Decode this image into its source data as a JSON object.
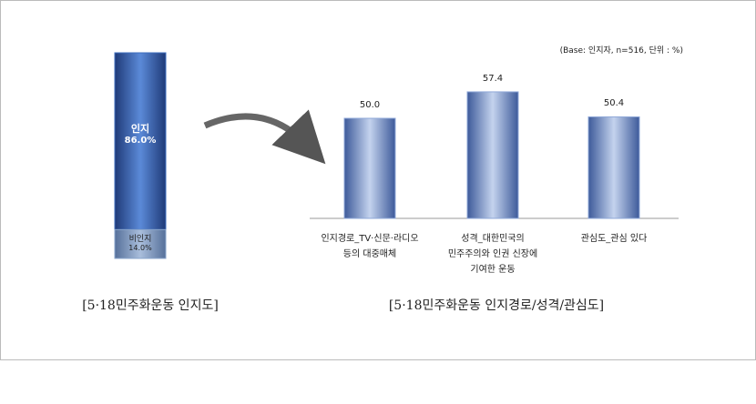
{
  "chart_data": [
    {
      "type": "stacked100",
      "caption": "[5·18민주화운동 인지도]",
      "categories": [
        "인지",
        "비인지"
      ],
      "values": [
        86.0,
        14.0
      ],
      "value_labels": [
        "86.0%",
        "14.0%"
      ],
      "colors": [
        "#3f6fbf",
        "#8aa6cc"
      ]
    },
    {
      "type": "bar",
      "caption": "[5·18민주화운동 인지경로/성격/관심도]",
      "subtitle": "(Base: 인지자, n=516, 단위 : %)",
      "categories": [
        "인지경로_TV·신문·라디오\n등의 대중매체",
        "성격_대한민국의\n민주주의와 인권 신장에\n기여한 운동",
        "관심도_관심 있다"
      ],
      "values": [
        50.0,
        57.4,
        50.4
      ],
      "value_labels": [
        "50.0",
        "57.4",
        "50.4"
      ],
      "color": "#8fa8d8",
      "ylim": [
        22,
        64
      ]
    }
  ]
}
